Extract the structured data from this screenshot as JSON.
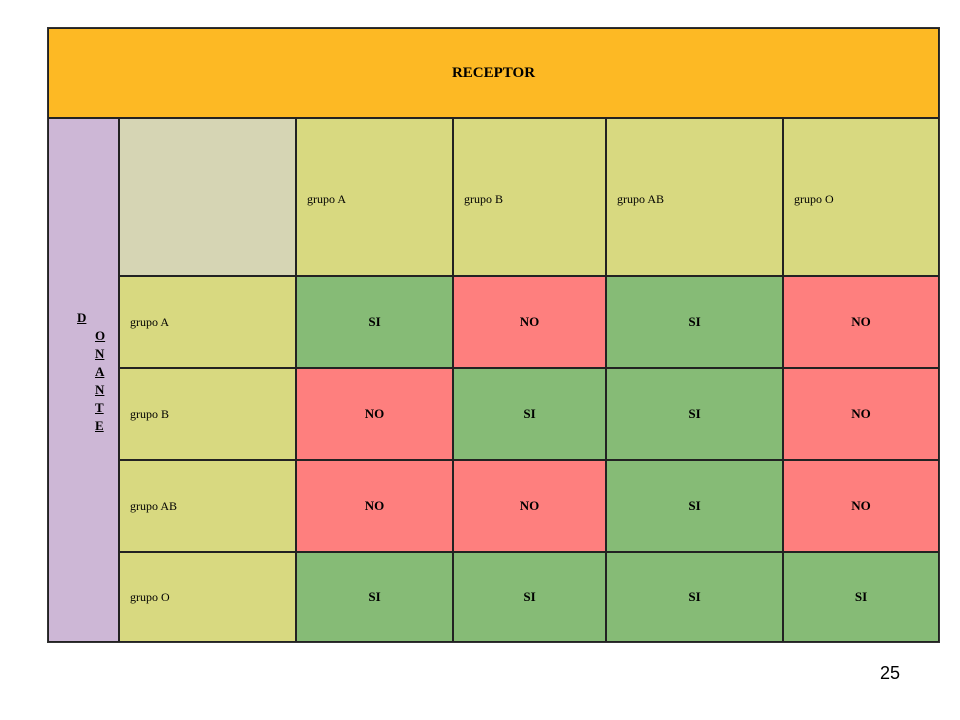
{
  "table": {
    "receptor_label": "RECEPTOR",
    "donante_letters": [
      "D",
      "O",
      "N",
      "A",
      "N",
      "T",
      "E"
    ],
    "column_headers": [
      "grupo A",
      "grupo B",
      "grupo AB",
      "grupo O"
    ],
    "rows": [
      {
        "label": "grupo A",
        "values": [
          "SI",
          "NO",
          "SI",
          "NO"
        ]
      },
      {
        "label": "grupo B",
        "values": [
          "NO",
          "SI",
          "SI",
          "NO"
        ]
      },
      {
        "label": "grupo AB",
        "values": [
          "NO",
          "NO",
          "SI",
          "NO"
        ]
      },
      {
        "label": "grupo O",
        "values": [
          "SI",
          "SI",
          "SI",
          "SI"
        ]
      }
    ]
  },
  "colors": {
    "receptor": "#fdb924",
    "donante": "#cdb7d6",
    "corner": "#d6d5b4",
    "header": "#d8d980",
    "si": "#86bb76",
    "no": "#fe7f7e"
  },
  "page_number": "25"
}
